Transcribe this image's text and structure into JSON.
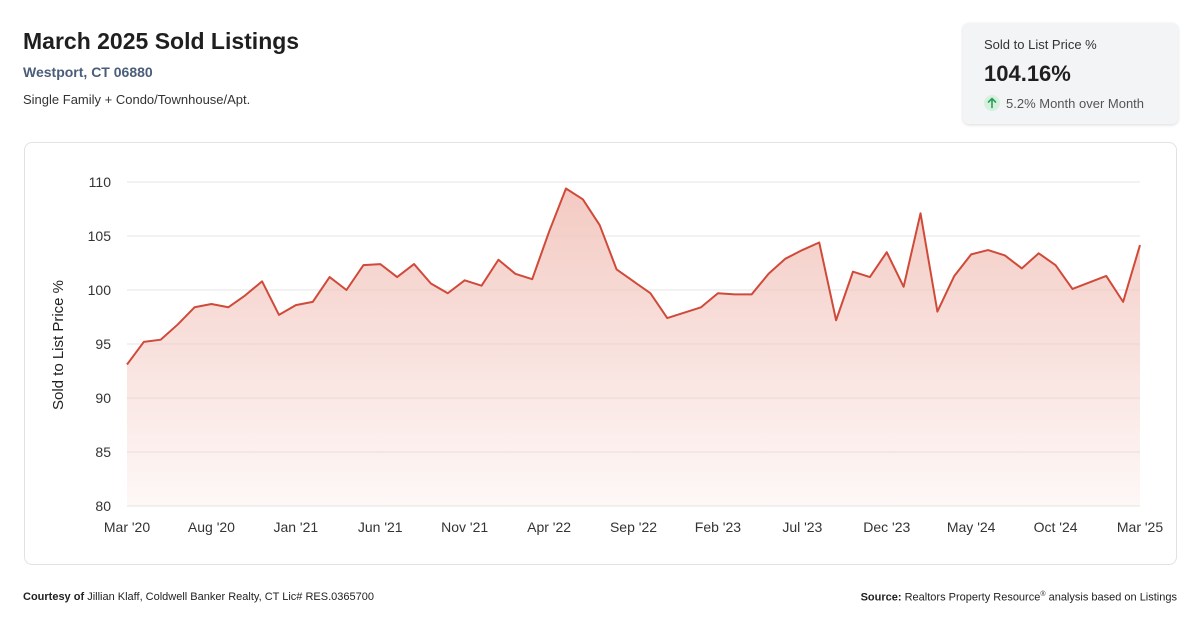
{
  "header": {
    "title": "March 2025 Sold Listings",
    "location": "Westport, CT 06880",
    "property_types": "Single Family + Condo/Townhouse/Apt."
  },
  "kpi": {
    "label": "Sold to List Price %",
    "value": "104.16%",
    "change": "5.2% Month over Month",
    "arrow_icon": "arrow-up-icon",
    "arrow_color": "#2e9e57",
    "arrow_bg": "#d6f0de"
  },
  "footer": {
    "courtesy_label": "Courtesy of",
    "courtesy_text": "Jillian Klaff, Coldwell Banker Realty, CT Lic# RES.0365700",
    "source_label": "Source:",
    "source_text_1": "Realtors Property Resource",
    "source_mark": "®",
    "source_text_2": "analysis based on Listings"
  },
  "chart_data": {
    "type": "area",
    "ylabel": "Sold to List Price %",
    "ylim": [
      80,
      110
    ],
    "yticks": [
      80,
      85,
      90,
      95,
      100,
      105,
      110
    ],
    "xtick_labels": [
      "Mar '20",
      "Aug '20",
      "Jan '21",
      "Jun '21",
      "Nov '21",
      "Apr '22",
      "Sep '22",
      "Feb '23",
      "Jul '23",
      "Dec '23",
      "May '24",
      "Oct '24",
      "Mar '25"
    ],
    "grid": true,
    "line_color": "#d04a3a",
    "fill_color": "#f2c4bc",
    "series": [
      {
        "values": [
          93.1,
          95.2,
          95.4,
          96.8,
          98.4,
          98.7,
          98.4,
          99.5,
          100.8,
          97.7,
          98.6,
          98.9,
          101.2,
          100.0,
          102.3,
          102.4,
          101.2,
          102.4,
          100.6,
          99.7,
          100.9,
          100.4,
          102.8,
          101.5,
          101.0,
          105.4,
          109.4,
          108.4,
          106.0,
          101.9,
          100.8,
          99.7,
          97.4,
          97.9,
          98.4,
          99.7,
          99.6,
          99.6,
          101.5,
          102.9,
          103.7,
          104.4,
          97.2,
          101.7,
          101.2,
          103.5,
          100.3,
          107.1,
          98.0,
          101.3,
          103.3,
          103.7,
          103.2,
          102.0,
          103.4,
          102.3,
          100.1,
          100.7,
          101.3,
          98.9,
          104.16
        ]
      }
    ]
  }
}
